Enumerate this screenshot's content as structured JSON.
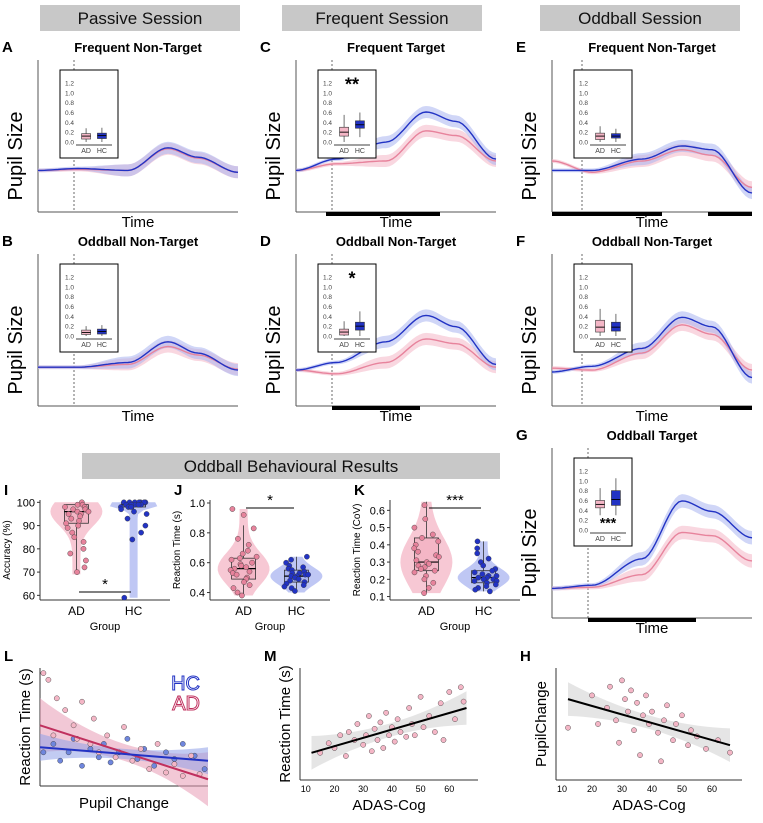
{
  "sessions": [
    "Passive Session",
    "Frequent Session",
    "Oddball Session"
  ],
  "behav_banner": "Oddball Behavioural Results",
  "colors": {
    "AD": "#e7839c",
    "AD_fill": "#f4b6c6",
    "HC": "#2233c4",
    "HC_fill": "#aab4f0",
    "banner": "#c8c8c8"
  },
  "time_label": "Time",
  "pupil_label": "Pupil Size",
  "pupil_panels": [
    {
      "letter": "A",
      "title": "Frequent Non-Target",
      "inset": {
        "AD": {
          "q1": 0.06,
          "med": 0.12,
          "q3": 0.17,
          "lo": 0.0,
          "hi": 0.28
        },
        "HC": {
          "q1": 0.07,
          "med": 0.13,
          "q3": 0.18,
          "lo": 0.0,
          "hi": 0.29
        }
      },
      "sig": ""
    },
    {
      "letter": "C",
      "title": "Frequent Target",
      "inset": {
        "AD": {
          "q1": 0.12,
          "med": 0.2,
          "q3": 0.3,
          "lo": 0.0,
          "hi": 0.55
        },
        "HC": {
          "q1": 0.28,
          "med": 0.35,
          "q3": 0.43,
          "lo": 0.1,
          "hi": 0.6
        }
      },
      "sig": "**"
    },
    {
      "letter": "E",
      "title": "Frequent Non-Target",
      "inset": {
        "AD": {
          "q1": 0.05,
          "med": 0.12,
          "q3": 0.18,
          "lo": 0.0,
          "hi": 0.32
        },
        "HC": {
          "q1": 0.08,
          "med": 0.12,
          "q3": 0.17,
          "lo": 0.0,
          "hi": 0.27
        }
      },
      "sig": ""
    },
    {
      "letter": "B",
      "title": "Oddball Non-Target",
      "inset": {
        "AD": {
          "q1": 0.03,
          "med": 0.07,
          "q3": 0.12,
          "lo": 0.0,
          "hi": 0.2
        },
        "HC": {
          "q1": 0.04,
          "med": 0.09,
          "q3": 0.14,
          "lo": 0.0,
          "hi": 0.22
        }
      },
      "sig": ""
    },
    {
      "letter": "D",
      "title": "Oddball Non-Target",
      "inset": {
        "AD": {
          "q1": 0.02,
          "med": 0.08,
          "q3": 0.14,
          "lo": 0.0,
          "hi": 0.3
        },
        "HC": {
          "q1": 0.12,
          "med": 0.2,
          "q3": 0.28,
          "lo": 0.0,
          "hi": 0.5
        }
      },
      "sig": "*"
    },
    {
      "letter": "F",
      "title": "Oddball Non-Target",
      "inset": {
        "AD": {
          "q1": 0.08,
          "med": 0.18,
          "q3": 0.32,
          "lo": 0.0,
          "hi": 0.55
        },
        "HC": {
          "q1": 0.1,
          "med": 0.18,
          "q3": 0.28,
          "lo": 0.0,
          "hi": 0.45
        }
      },
      "sig": ""
    },
    {
      "letter": "G",
      "title": "Oddball Target",
      "inset": {
        "AD": {
          "q1": 0.45,
          "med": 0.52,
          "q3": 0.6,
          "lo": 0.3,
          "hi": 0.85
        },
        "HC": {
          "q1": 0.5,
          "med": 0.62,
          "q3": 0.8,
          "lo": 0.3,
          "hi": 1.05
        }
      },
      "sig": "***"
    }
  ],
  "inset_ticks": [
    "0.0",
    "0.2",
    "0.4",
    "0.6",
    "0.8",
    "1.0",
    "1.2"
  ],
  "group_labels": [
    "AD",
    "HC"
  ],
  "chart_data": [
    {
      "id": "I",
      "type": "violin+box",
      "ylabel": "Accuracy (%)",
      "xlabel": "Group",
      "categories": [
        "AD",
        "HC"
      ],
      "ylim": [
        58,
        101
      ],
      "yticks": [
        "60",
        "70",
        "80",
        "90",
        "100"
      ],
      "sig": "*",
      "AD": {
        "q1": 91,
        "med": 96,
        "q3": 99,
        "lo": 69,
        "hi": 100,
        "points": [
          100,
          99,
          99,
          98,
          98,
          97,
          97,
          96,
          96,
          95,
          95,
          94,
          93,
          92,
          91,
          90,
          89,
          87,
          85,
          83,
          80,
          78,
          75,
          72,
          70
        ]
      },
      "HC": {
        "q1": 98,
        "med": 99,
        "q3": 100,
        "lo": 95,
        "hi": 100,
        "points": [
          100,
          100,
          100,
          100,
          100,
          100,
          100,
          99,
          99,
          99,
          99,
          99,
          99,
          98,
          98,
          98,
          97,
          96,
          95,
          93,
          90,
          87,
          84,
          59
        ]
      }
    },
    {
      "id": "J",
      "type": "violin+box",
      "ylabel": "Reaction Time (s)",
      "xlabel": "Group",
      "categories": [
        "AD",
        "HC"
      ],
      "ylim": [
        0.35,
        1.02
      ],
      "yticks": [
        "0.4",
        "0.6",
        "0.8",
        "1.0"
      ],
      "sig": "*",
      "AD": {
        "q1": 0.49,
        "med": 0.56,
        "q3": 0.63,
        "lo": 0.38,
        "hi": 0.85,
        "points": [
          0.96,
          0.92,
          0.83,
          0.76,
          0.72,
          0.68,
          0.66,
          0.64,
          0.63,
          0.62,
          0.6,
          0.59,
          0.58,
          0.57,
          0.56,
          0.55,
          0.54,
          0.53,
          0.52,
          0.5,
          0.49,
          0.47,
          0.45,
          0.43,
          0.4,
          0.38
        ]
      },
      "HC": {
        "q1": 0.47,
        "med": 0.51,
        "q3": 0.55,
        "lo": 0.4,
        "hi": 0.64,
        "points": [
          0.64,
          0.62,
          0.6,
          0.58,
          0.57,
          0.56,
          0.55,
          0.54,
          0.53,
          0.53,
          0.52,
          0.52,
          0.51,
          0.51,
          0.5,
          0.5,
          0.49,
          0.48,
          0.47,
          0.46,
          0.45,
          0.44,
          0.43,
          0.41
        ]
      }
    },
    {
      "id": "K",
      "type": "violin+box",
      "ylabel": "Reaction Time (CoV)",
      "xlabel": "Group",
      "categories": [
        "AD",
        "HC"
      ],
      "ylim": [
        0.08,
        0.66
      ],
      "yticks": [
        "0.1",
        "0.2",
        "0.3",
        "0.4",
        "0.5",
        "0.6"
      ],
      "sig": "***",
      "AD": {
        "q1": 0.25,
        "med": 0.3,
        "q3": 0.44,
        "lo": 0.12,
        "hi": 0.65,
        "points": [
          0.63,
          0.55,
          0.5,
          0.46,
          0.44,
          0.42,
          0.4,
          0.38,
          0.36,
          0.34,
          0.33,
          0.31,
          0.3,
          0.29,
          0.28,
          0.27,
          0.26,
          0.25,
          0.24,
          0.22,
          0.2,
          0.18,
          0.15,
          0.12
        ]
      },
      "HC": {
        "q1": 0.18,
        "med": 0.21,
        "q3": 0.25,
        "lo": 0.13,
        "hi": 0.42,
        "points": [
          0.42,
          0.38,
          0.35,
          0.32,
          0.3,
          0.28,
          0.26,
          0.25,
          0.24,
          0.23,
          0.22,
          0.22,
          0.21,
          0.21,
          0.2,
          0.2,
          0.19,
          0.19,
          0.18,
          0.17,
          0.16,
          0.15,
          0.14,
          0.13
        ]
      }
    },
    {
      "id": "L",
      "type": "scatter",
      "xlabel": "Pupil Change",
      "ylabel": "Reaction Time (s)",
      "legend": [
        "HC",
        "AD"
      ],
      "xlim": [
        -0.2,
        0.8
      ],
      "ylim": [
        0.3,
        1.0
      ],
      "AD": {
        "line": [
          [
            -0.2,
            0.66
          ],
          [
            0.8,
            0.34
          ]
        ],
        "points": [
          [
            -0.18,
            0.97
          ],
          [
            -0.15,
            0.93
          ],
          [
            -0.1,
            0.82
          ],
          [
            -0.12,
            0.6
          ],
          [
            -0.05,
            0.75
          ],
          [
            0.0,
            0.66
          ],
          [
            0.02,
            0.58
          ],
          [
            0.05,
            0.8
          ],
          [
            0.1,
            0.55
          ],
          [
            0.12,
            0.7
          ],
          [
            0.15,
            0.5
          ],
          [
            0.2,
            0.6
          ],
          [
            0.25,
            0.47
          ],
          [
            0.3,
            0.65
          ],
          [
            0.35,
            0.45
          ],
          [
            0.4,
            0.52
          ],
          [
            0.45,
            0.4
          ],
          [
            0.5,
            0.55
          ],
          [
            0.55,
            0.38
          ],
          [
            0.6,
            0.43
          ],
          [
            0.65,
            0.36
          ],
          [
            0.7,
            0.48
          ],
          [
            0.75,
            0.37
          ]
        ]
      },
      "HC": {
        "line": [
          [
            -0.2,
            0.53
          ],
          [
            0.8,
            0.45
          ]
        ],
        "points": [
          [
            -0.18,
            0.5
          ],
          [
            -0.12,
            0.55
          ],
          [
            -0.08,
            0.45
          ],
          [
            -0.03,
            0.5
          ],
          [
            0.0,
            0.58
          ],
          [
            0.05,
            0.42
          ],
          [
            0.1,
            0.52
          ],
          [
            0.15,
            0.47
          ],
          [
            0.18,
            0.55
          ],
          [
            0.22,
            0.44
          ],
          [
            0.27,
            0.5
          ],
          [
            0.32,
            0.58
          ],
          [
            0.38,
            0.46
          ],
          [
            0.42,
            0.52
          ],
          [
            0.48,
            0.42
          ],
          [
            0.55,
            0.5
          ],
          [
            0.6,
            0.46
          ],
          [
            0.65,
            0.55
          ],
          [
            0.72,
            0.48
          ],
          [
            0.78,
            0.4
          ]
        ]
      }
    },
    {
      "id": "M",
      "type": "scatter",
      "xlabel": "ADAS-Cog",
      "ylabel": "Reaction Time (s)",
      "xlim": [
        8,
        70
      ],
      "ylim": [
        0.3,
        1.0
      ],
      "xticks": [
        "10",
        "20",
        "30",
        "40",
        "50",
        "60"
      ],
      "fit": [
        [
          12,
          0.47
        ],
        [
          66,
          0.75
        ]
      ],
      "points": [
        [
          15,
          0.47
        ],
        [
          18,
          0.53
        ],
        [
          20,
          0.5
        ],
        [
          22,
          0.58
        ],
        [
          24,
          0.45
        ],
        [
          25,
          0.6
        ],
        [
          27,
          0.55
        ],
        [
          28,
          0.65
        ],
        [
          30,
          0.52
        ],
        [
          31,
          0.58
        ],
        [
          32,
          0.7
        ],
        [
          33,
          0.48
        ],
        [
          34,
          0.62
        ],
        [
          35,
          0.55
        ],
        [
          36,
          0.66
        ],
        [
          37,
          0.5
        ],
        [
          38,
          0.72
        ],
        [
          39,
          0.58
        ],
        [
          40,
          0.63
        ],
        [
          41,
          0.54
        ],
        [
          42,
          0.68
        ],
        [
          43,
          0.6
        ],
        [
          45,
          0.57
        ],
        [
          46,
          0.75
        ],
        [
          47,
          0.65
        ],
        [
          48,
          0.58
        ],
        [
          50,
          0.82
        ],
        [
          51,
          0.63
        ],
        [
          53,
          0.7
        ],
        [
          55,
          0.6
        ],
        [
          57,
          0.78
        ],
        [
          58,
          0.55
        ],
        [
          60,
          0.85
        ],
        [
          62,
          0.68
        ],
        [
          64,
          0.88
        ],
        [
          65,
          0.79
        ]
      ]
    },
    {
      "id": "H",
      "type": "scatter",
      "xlabel": "ADAS-Cog",
      "ylabel": "PupilChange",
      "xlim": [
        8,
        70
      ],
      "ylim": [
        -0.1,
        0.8
      ],
      "xticks": [
        "10",
        "20",
        "30",
        "40",
        "50",
        "60"
      ],
      "fit": [
        [
          12,
          0.55
        ],
        [
          66,
          0.18
        ]
      ],
      "points": [
        [
          12,
          0.32
        ],
        [
          20,
          0.58
        ],
        [
          22,
          0.35
        ],
        [
          25,
          0.48
        ],
        [
          26,
          0.65
        ],
        [
          28,
          0.38
        ],
        [
          29,
          0.2
        ],
        [
          30,
          0.7
        ],
        [
          31,
          0.55
        ],
        [
          32,
          0.45
        ],
        [
          33,
          0.62
        ],
        [
          34,
          0.3
        ],
        [
          35,
          0.52
        ],
        [
          36,
          0.1
        ],
        [
          37,
          0.42
        ],
        [
          38,
          0.58
        ],
        [
          39,
          0.35
        ],
        [
          40,
          0.45
        ],
        [
          42,
          0.28
        ],
        [
          43,
          0.05
        ],
        [
          44,
          0.38
        ],
        [
          45,
          0.5
        ],
        [
          47,
          0.22
        ],
        [
          48,
          0.35
        ],
        [
          50,
          0.42
        ],
        [
          52,
          0.18
        ],
        [
          53,
          0.3
        ],
        [
          55,
          0.25
        ],
        [
          58,
          0.15
        ],
        [
          62,
          0.22
        ],
        [
          66,
          0.12
        ]
      ]
    }
  ]
}
